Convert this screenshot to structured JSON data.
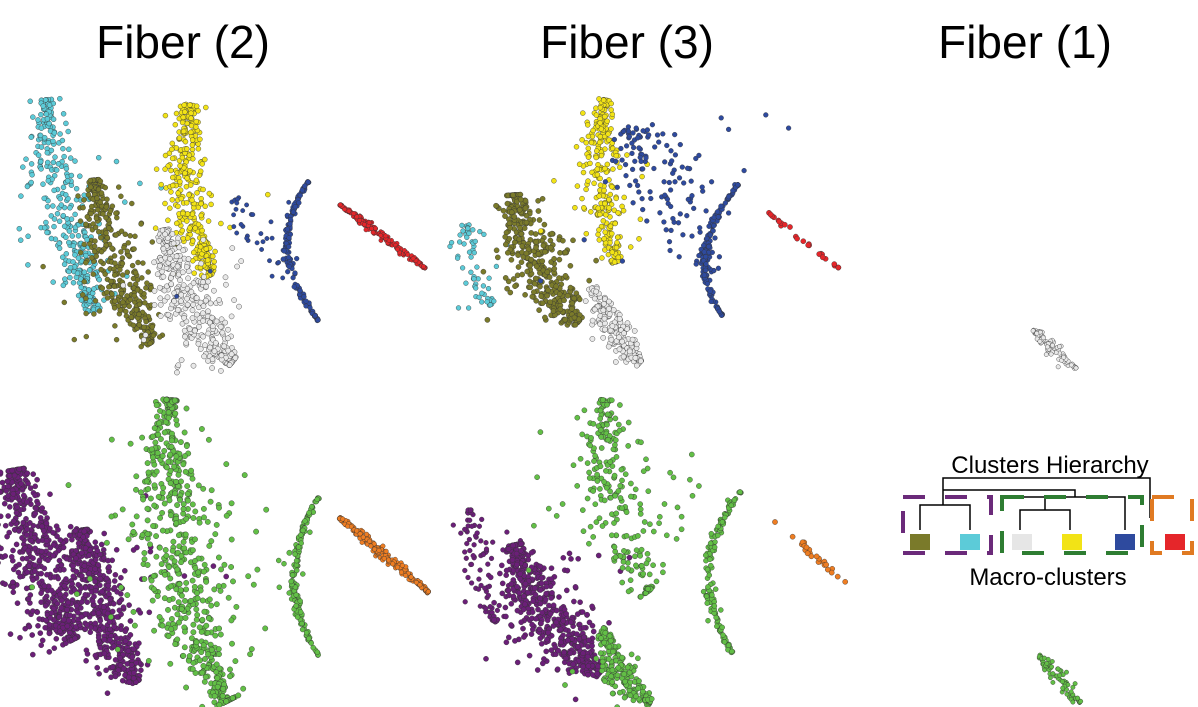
{
  "panels": [
    {
      "title": "Fiber (2)"
    },
    {
      "title": "Fiber (3)"
    },
    {
      "title": "Fiber (1)"
    }
  ],
  "legend": {
    "title": "Clusters Hierarchy",
    "caption": "Macro-clusters"
  }
}
